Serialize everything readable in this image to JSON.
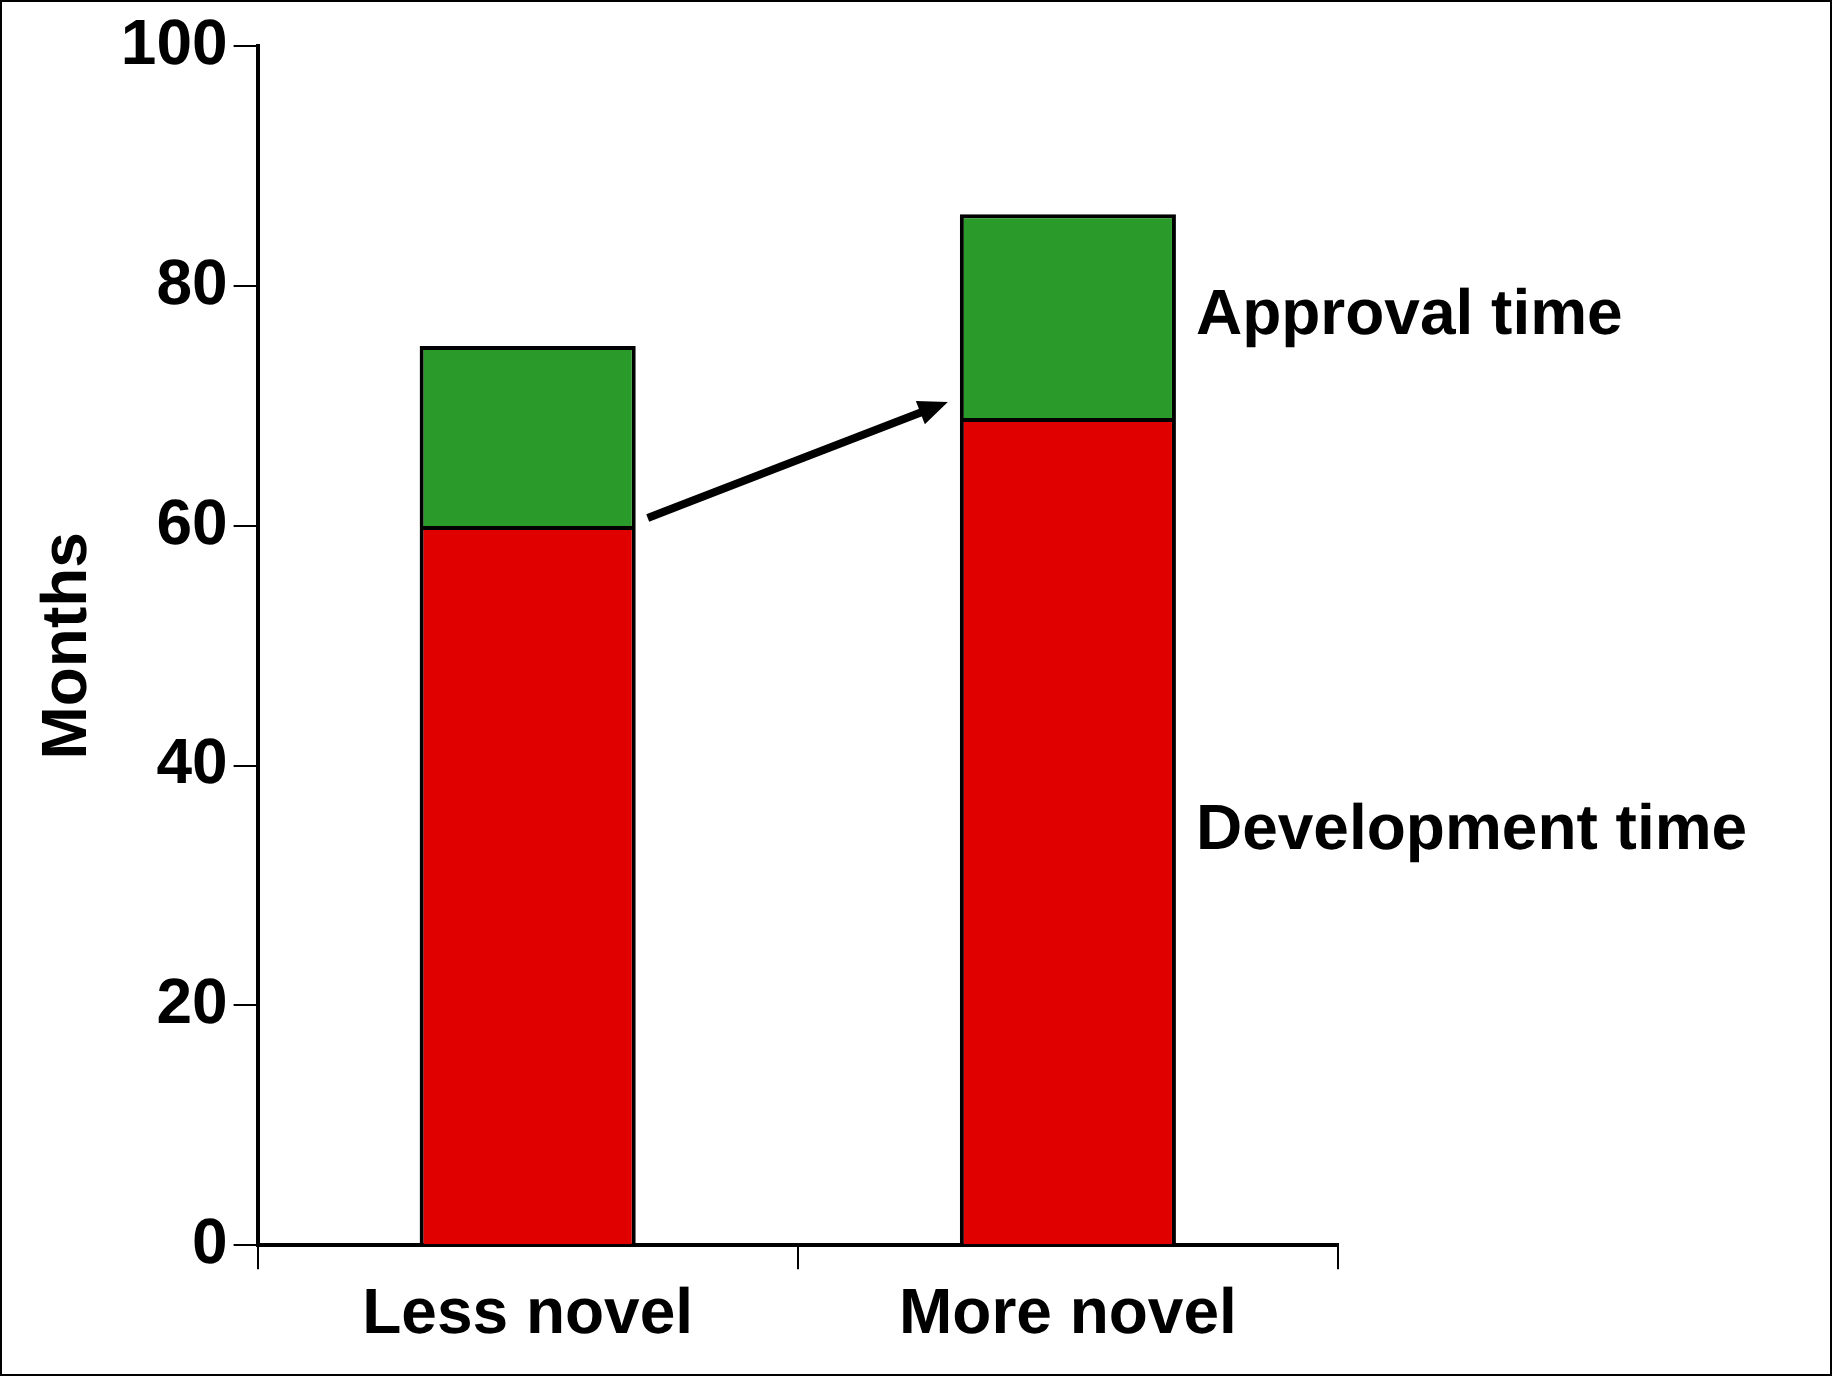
{
  "chart_data": {
    "type": "bar",
    "stacked": true,
    "ylabel": "Months",
    "categories": [
      "Less novel",
      "More novel"
    ],
    "series": [
      {
        "name": "Development time",
        "color": "#e00000",
        "values": [
          60,
          69
        ]
      },
      {
        "name": "Approval time",
        "color": "#2a9a2a",
        "values": [
          15,
          17
        ]
      }
    ],
    "ylim": [
      0,
      100
    ],
    "yticks": [
      0,
      20,
      40,
      60,
      80,
      100
    ],
    "grid": false,
    "legend": false
  }
}
